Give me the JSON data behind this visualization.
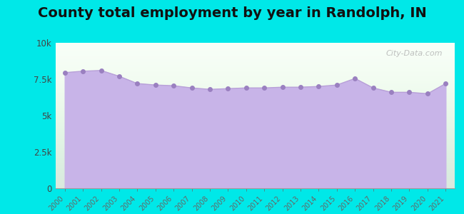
{
  "title": "County total employment by year in Randolph, IN",
  "years": [
    2000,
    2001,
    2002,
    2003,
    2004,
    2005,
    2006,
    2007,
    2008,
    2009,
    2010,
    2011,
    2012,
    2013,
    2014,
    2015,
    2016,
    2017,
    2018,
    2019,
    2020,
    2021
  ],
  "values": [
    7950,
    8050,
    8100,
    7700,
    7200,
    7100,
    7050,
    6900,
    6800,
    6850,
    6900,
    6900,
    6950,
    6950,
    7000,
    7100,
    7550,
    6900,
    6600,
    6600,
    6500,
    7200
  ],
  "ylim": [
    0,
    10000
  ],
  "yticks": [
    0,
    2500,
    5000,
    7500,
    10000
  ],
  "line_color": "#b8a0d8",
  "fill_color": "#c8b4e8",
  "fill_alpha": 1.0,
  "marker_color": "#9a80c0",
  "marker_size": 16,
  "bg_outer": "#00e8e8",
  "bg_plot_top": "#eaf5ea",
  "bg_plot_bottom": "#ffffff",
  "title_fontsize": 14,
  "title_fontweight": "bold",
  "watermark": "City-Data.com"
}
